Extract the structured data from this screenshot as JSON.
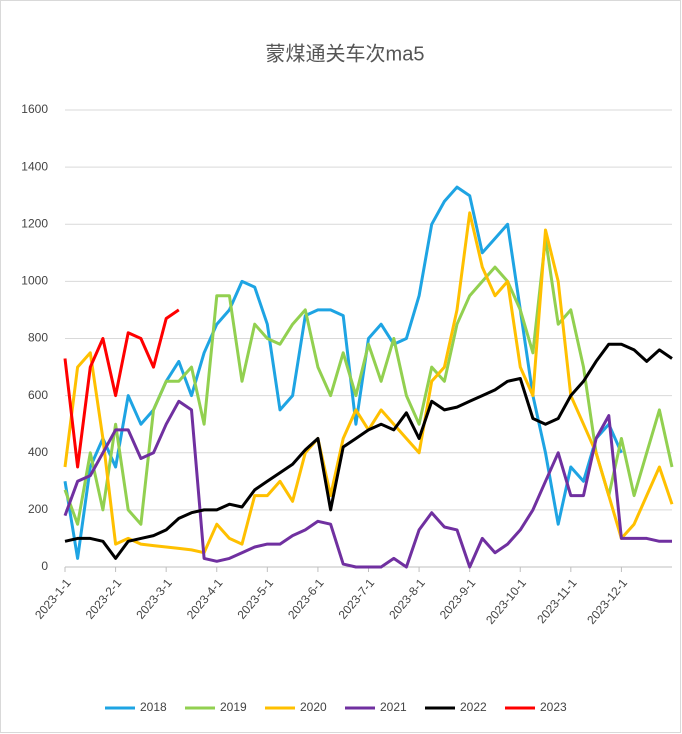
{
  "chart_data": {
    "type": "line",
    "title": "蒙煤通关车次ma5",
    "categories": [
      "2023-1-1",
      null,
      null,
      null,
      "2023-2-1",
      null,
      null,
      null,
      "2023-3-1",
      null,
      null,
      null,
      "2023-4-1",
      null,
      null,
      null,
      "2023-5-1",
      null,
      null,
      null,
      "2023-6-1",
      null,
      null,
      null,
      "2023-7-1",
      null,
      null,
      null,
      "2023-8-1",
      null,
      null,
      null,
      "2023-9-1",
      null,
      null,
      null,
      "2023-10-1",
      null,
      null,
      null,
      "2023-11-1",
      null,
      null,
      null,
      "2023-12-1",
      null,
      null,
      null,
      null
    ],
    "ylim": [
      0,
      1600
    ],
    "yticks": [
      0,
      200,
      400,
      600,
      800,
      1000,
      1200,
      1400,
      1600
    ],
    "grid": true,
    "legend": "bottom",
    "series": [
      {
        "name": "2018",
        "color": "#1ea4e3",
        "values": [
          300,
          30,
          350,
          450,
          350,
          600,
          500,
          550,
          650,
          720,
          600,
          750,
          850,
          900,
          1000,
          980,
          850,
          550,
          600,
          880,
          900,
          900,
          880,
          500,
          800,
          850,
          780,
          800,
          950,
          1200,
          1280,
          1330,
          1300,
          1100,
          1150,
          1200,
          900,
          600,
          400,
          150,
          350,
          300,
          450,
          500,
          400,
          null,
          null,
          null,
          null
        ]
      },
      {
        "name": "2019",
        "color": "#92d050",
        "values": [
          270,
          150,
          400,
          200,
          500,
          200,
          150,
          550,
          650,
          650,
          700,
          500,
          950,
          950,
          650,
          850,
          800,
          780,
          850,
          900,
          700,
          600,
          750,
          600,
          780,
          650,
          800,
          600,
          500,
          700,
          650,
          850,
          950,
          1000,
          1050,
          1000,
          900,
          750,
          1150,
          850,
          900,
          700,
          400,
          250,
          450,
          250,
          400,
          550,
          350
        ]
      },
      {
        "name": "2020",
        "color": "#ffc000",
        "values": [
          350,
          700,
          750,
          450,
          80,
          100,
          80,
          75,
          70,
          65,
          60,
          50,
          150,
          100,
          80,
          250,
          250,
          300,
          230,
          400,
          450,
          250,
          450,
          550,
          480,
          550,
          500,
          450,
          400,
          650,
          700,
          900,
          1240,
          1050,
          950,
          1000,
          700,
          600,
          1180,
          1000,
          600,
          500,
          400,
          250,
          100,
          150,
          250,
          350,
          220
        ]
      },
      {
        "name": "2021",
        "color": "#7030a0",
        "values": [
          180,
          300,
          320,
          400,
          480,
          480,
          380,
          400,
          500,
          580,
          550,
          30,
          20,
          30,
          50,
          70,
          80,
          80,
          110,
          130,
          160,
          150,
          10,
          0,
          0,
          0,
          30,
          0,
          130,
          190,
          140,
          130,
          0,
          100,
          50,
          80,
          130,
          200,
          300,
          400,
          250,
          250,
          450,
          530,
          100,
          100,
          100,
          90,
          90
        ]
      },
      {
        "name": "2022",
        "color": "#000000",
        "values": [
          90,
          100,
          100,
          90,
          30,
          90,
          100,
          110,
          130,
          170,
          190,
          200,
          200,
          220,
          210,
          270,
          300,
          330,
          360,
          410,
          450,
          200,
          420,
          450,
          480,
          500,
          480,
          540,
          450,
          580,
          550,
          560,
          580,
          600,
          620,
          650,
          660,
          520,
          500,
          520,
          600,
          650,
          720,
          780,
          780,
          760,
          720,
          760,
          730
        ]
      },
      {
        "name": "2023",
        "color": "#ff0000",
        "values": [
          730,
          350,
          700,
          800,
          600,
          820,
          800,
          700,
          870,
          900,
          null,
          null,
          null,
          null,
          null,
          null,
          null,
          null,
          null,
          null,
          null,
          null,
          null,
          null,
          null,
          null,
          null,
          null,
          null,
          null,
          null,
          null,
          null,
          null,
          null,
          null,
          null,
          null,
          null,
          null,
          null,
          null,
          null,
          null,
          null,
          null,
          null,
          null,
          null
        ]
      }
    ]
  }
}
